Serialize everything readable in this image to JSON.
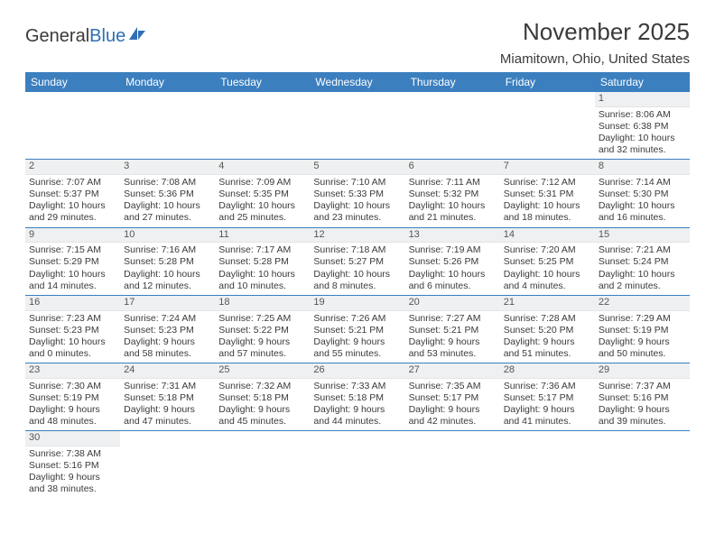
{
  "logo": {
    "text1": "General",
    "text2": "Blue"
  },
  "title": "November 2025",
  "location": "Miamitown, Ohio, United States",
  "colors": {
    "header_bg": "#3b7fbf",
    "header_text": "#ffffff",
    "daynum_bg": "#eef0f1",
    "border": "#3b7fbf",
    "text": "#3a3a3a",
    "logo_blue": "#2f6fb3"
  },
  "weekdays": [
    "Sunday",
    "Monday",
    "Tuesday",
    "Wednesday",
    "Thursday",
    "Friday",
    "Saturday"
  ],
  "weeks": [
    [
      {
        "n": "",
        "sr": "",
        "ss": "",
        "dl": ""
      },
      {
        "n": "",
        "sr": "",
        "ss": "",
        "dl": ""
      },
      {
        "n": "",
        "sr": "",
        "ss": "",
        "dl": ""
      },
      {
        "n": "",
        "sr": "",
        "ss": "",
        "dl": ""
      },
      {
        "n": "",
        "sr": "",
        "ss": "",
        "dl": ""
      },
      {
        "n": "",
        "sr": "",
        "ss": "",
        "dl": ""
      },
      {
        "n": "1",
        "sr": "Sunrise: 8:06 AM",
        "ss": "Sunset: 6:38 PM",
        "dl": "Daylight: 10 hours and 32 minutes."
      }
    ],
    [
      {
        "n": "2",
        "sr": "Sunrise: 7:07 AM",
        "ss": "Sunset: 5:37 PM",
        "dl": "Daylight: 10 hours and 29 minutes."
      },
      {
        "n": "3",
        "sr": "Sunrise: 7:08 AM",
        "ss": "Sunset: 5:36 PM",
        "dl": "Daylight: 10 hours and 27 minutes."
      },
      {
        "n": "4",
        "sr": "Sunrise: 7:09 AM",
        "ss": "Sunset: 5:35 PM",
        "dl": "Daylight: 10 hours and 25 minutes."
      },
      {
        "n": "5",
        "sr": "Sunrise: 7:10 AM",
        "ss": "Sunset: 5:33 PM",
        "dl": "Daylight: 10 hours and 23 minutes."
      },
      {
        "n": "6",
        "sr": "Sunrise: 7:11 AM",
        "ss": "Sunset: 5:32 PM",
        "dl": "Daylight: 10 hours and 21 minutes."
      },
      {
        "n": "7",
        "sr": "Sunrise: 7:12 AM",
        "ss": "Sunset: 5:31 PM",
        "dl": "Daylight: 10 hours and 18 minutes."
      },
      {
        "n": "8",
        "sr": "Sunrise: 7:14 AM",
        "ss": "Sunset: 5:30 PM",
        "dl": "Daylight: 10 hours and 16 minutes."
      }
    ],
    [
      {
        "n": "9",
        "sr": "Sunrise: 7:15 AM",
        "ss": "Sunset: 5:29 PM",
        "dl": "Daylight: 10 hours and 14 minutes."
      },
      {
        "n": "10",
        "sr": "Sunrise: 7:16 AM",
        "ss": "Sunset: 5:28 PM",
        "dl": "Daylight: 10 hours and 12 minutes."
      },
      {
        "n": "11",
        "sr": "Sunrise: 7:17 AM",
        "ss": "Sunset: 5:28 PM",
        "dl": "Daylight: 10 hours and 10 minutes."
      },
      {
        "n": "12",
        "sr": "Sunrise: 7:18 AM",
        "ss": "Sunset: 5:27 PM",
        "dl": "Daylight: 10 hours and 8 minutes."
      },
      {
        "n": "13",
        "sr": "Sunrise: 7:19 AM",
        "ss": "Sunset: 5:26 PM",
        "dl": "Daylight: 10 hours and 6 minutes."
      },
      {
        "n": "14",
        "sr": "Sunrise: 7:20 AM",
        "ss": "Sunset: 5:25 PM",
        "dl": "Daylight: 10 hours and 4 minutes."
      },
      {
        "n": "15",
        "sr": "Sunrise: 7:21 AM",
        "ss": "Sunset: 5:24 PM",
        "dl": "Daylight: 10 hours and 2 minutes."
      }
    ],
    [
      {
        "n": "16",
        "sr": "Sunrise: 7:23 AM",
        "ss": "Sunset: 5:23 PM",
        "dl": "Daylight: 10 hours and 0 minutes."
      },
      {
        "n": "17",
        "sr": "Sunrise: 7:24 AM",
        "ss": "Sunset: 5:23 PM",
        "dl": "Daylight: 9 hours and 58 minutes."
      },
      {
        "n": "18",
        "sr": "Sunrise: 7:25 AM",
        "ss": "Sunset: 5:22 PM",
        "dl": "Daylight: 9 hours and 57 minutes."
      },
      {
        "n": "19",
        "sr": "Sunrise: 7:26 AM",
        "ss": "Sunset: 5:21 PM",
        "dl": "Daylight: 9 hours and 55 minutes."
      },
      {
        "n": "20",
        "sr": "Sunrise: 7:27 AM",
        "ss": "Sunset: 5:21 PM",
        "dl": "Daylight: 9 hours and 53 minutes."
      },
      {
        "n": "21",
        "sr": "Sunrise: 7:28 AM",
        "ss": "Sunset: 5:20 PM",
        "dl": "Daylight: 9 hours and 51 minutes."
      },
      {
        "n": "22",
        "sr": "Sunrise: 7:29 AM",
        "ss": "Sunset: 5:19 PM",
        "dl": "Daylight: 9 hours and 50 minutes."
      }
    ],
    [
      {
        "n": "23",
        "sr": "Sunrise: 7:30 AM",
        "ss": "Sunset: 5:19 PM",
        "dl": "Daylight: 9 hours and 48 minutes."
      },
      {
        "n": "24",
        "sr": "Sunrise: 7:31 AM",
        "ss": "Sunset: 5:18 PM",
        "dl": "Daylight: 9 hours and 47 minutes."
      },
      {
        "n": "25",
        "sr": "Sunrise: 7:32 AM",
        "ss": "Sunset: 5:18 PM",
        "dl": "Daylight: 9 hours and 45 minutes."
      },
      {
        "n": "26",
        "sr": "Sunrise: 7:33 AM",
        "ss": "Sunset: 5:18 PM",
        "dl": "Daylight: 9 hours and 44 minutes."
      },
      {
        "n": "27",
        "sr": "Sunrise: 7:35 AM",
        "ss": "Sunset: 5:17 PM",
        "dl": "Daylight: 9 hours and 42 minutes."
      },
      {
        "n": "28",
        "sr": "Sunrise: 7:36 AM",
        "ss": "Sunset: 5:17 PM",
        "dl": "Daylight: 9 hours and 41 minutes."
      },
      {
        "n": "29",
        "sr": "Sunrise: 7:37 AM",
        "ss": "Sunset: 5:16 PM",
        "dl": "Daylight: 9 hours and 39 minutes."
      }
    ],
    [
      {
        "n": "30",
        "sr": "Sunrise: 7:38 AM",
        "ss": "Sunset: 5:16 PM",
        "dl": "Daylight: 9 hours and 38 minutes."
      },
      {
        "n": "",
        "sr": "",
        "ss": "",
        "dl": ""
      },
      {
        "n": "",
        "sr": "",
        "ss": "",
        "dl": ""
      },
      {
        "n": "",
        "sr": "",
        "ss": "",
        "dl": ""
      },
      {
        "n": "",
        "sr": "",
        "ss": "",
        "dl": ""
      },
      {
        "n": "",
        "sr": "",
        "ss": "",
        "dl": ""
      },
      {
        "n": "",
        "sr": "",
        "ss": "",
        "dl": ""
      }
    ]
  ]
}
